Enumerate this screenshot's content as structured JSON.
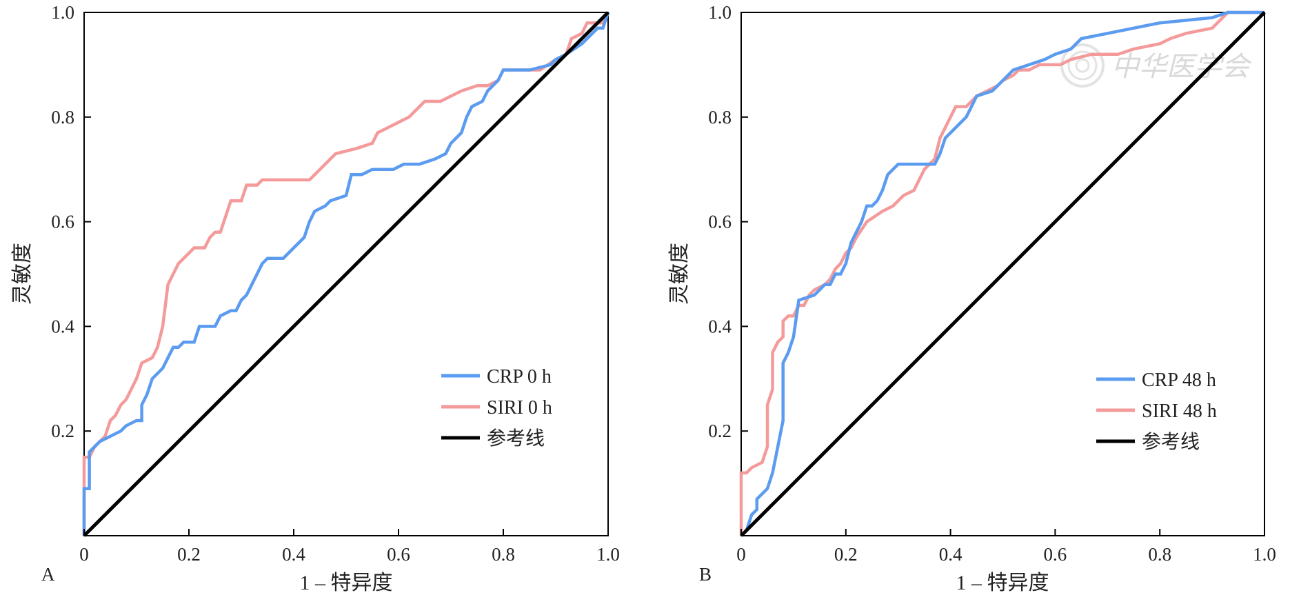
{
  "chart_data": [
    {
      "panel": "A",
      "type": "line",
      "xlabel": "1 – 特异度",
      "ylabel": "灵敏度",
      "xlim": [
        0,
        1.0
      ],
      "ylim": [
        0,
        1.0
      ],
      "x_ticks": [
        "0",
        "0.2",
        "0.4",
        "0.6",
        "0.8",
        "1.0"
      ],
      "y_ticks": [
        "0.2",
        "0.4",
        "0.6",
        "0.8",
        "1.0"
      ],
      "grid": false,
      "legend_position": "bottom-right",
      "series": [
        {
          "name": "CRP 0 h",
          "color": "#5b9bf0",
          "points": [
            [
              0,
              0
            ],
            [
              0,
              0.09
            ],
            [
              0.01,
              0.09
            ],
            [
              0.01,
              0.16
            ],
            [
              0.02,
              0.17
            ],
            [
              0.03,
              0.18
            ],
            [
              0.05,
              0.19
            ],
            [
              0.07,
              0.2
            ],
            [
              0.08,
              0.21
            ],
            [
              0.1,
              0.22
            ],
            [
              0.11,
              0.22
            ],
            [
              0.11,
              0.25
            ],
            [
              0.12,
              0.27
            ],
            [
              0.13,
              0.3
            ],
            [
              0.14,
              0.31
            ],
            [
              0.15,
              0.32
            ],
            [
              0.16,
              0.34
            ],
            [
              0.17,
              0.36
            ],
            [
              0.18,
              0.36
            ],
            [
              0.19,
              0.37
            ],
            [
              0.21,
              0.37
            ],
            [
              0.22,
              0.4
            ],
            [
              0.25,
              0.4
            ],
            [
              0.26,
              0.42
            ],
            [
              0.28,
              0.43
            ],
            [
              0.29,
              0.43
            ],
            [
              0.3,
              0.45
            ],
            [
              0.31,
              0.46
            ],
            [
              0.32,
              0.48
            ],
            [
              0.33,
              0.5
            ],
            [
              0.34,
              0.52
            ],
            [
              0.35,
              0.53
            ],
            [
              0.38,
              0.53
            ],
            [
              0.39,
              0.54
            ],
            [
              0.4,
              0.55
            ],
            [
              0.42,
              0.57
            ],
            [
              0.43,
              0.6
            ],
            [
              0.44,
              0.62
            ],
            [
              0.46,
              0.63
            ],
            [
              0.47,
              0.64
            ],
            [
              0.5,
              0.65
            ],
            [
              0.51,
              0.69
            ],
            [
              0.53,
              0.69
            ],
            [
              0.55,
              0.7
            ],
            [
              0.59,
              0.7
            ],
            [
              0.61,
              0.71
            ],
            [
              0.64,
              0.71
            ],
            [
              0.67,
              0.72
            ],
            [
              0.69,
              0.73
            ],
            [
              0.7,
              0.75
            ],
            [
              0.72,
              0.77
            ],
            [
              0.73,
              0.8
            ],
            [
              0.74,
              0.82
            ],
            [
              0.76,
              0.83
            ],
            [
              0.77,
              0.85
            ],
            [
              0.79,
              0.87
            ],
            [
              0.8,
              0.89
            ],
            [
              0.85,
              0.89
            ],
            [
              0.89,
              0.9
            ],
            [
              0.9,
              0.91
            ],
            [
              0.92,
              0.92
            ],
            [
              0.95,
              0.94
            ],
            [
              0.97,
              0.96
            ],
            [
              0.98,
              0.97
            ],
            [
              0.99,
              0.97
            ],
            [
              1.0,
              1.0
            ]
          ]
        },
        {
          "name": "SIRI 0 h",
          "color": "#f49a9a",
          "points": [
            [
              0,
              0
            ],
            [
              0,
              0.15
            ],
            [
              0.01,
              0.15
            ],
            [
              0.02,
              0.17
            ],
            [
              0.03,
              0.18
            ],
            [
              0.04,
              0.19
            ],
            [
              0.05,
              0.22
            ],
            [
              0.06,
              0.23
            ],
            [
              0.07,
              0.25
            ],
            [
              0.08,
              0.26
            ],
            [
              0.09,
              0.28
            ],
            [
              0.1,
              0.3
            ],
            [
              0.11,
              0.33
            ],
            [
              0.13,
              0.34
            ],
            [
              0.14,
              0.36
            ],
            [
              0.15,
              0.4
            ],
            [
              0.16,
              0.48
            ],
            [
              0.17,
              0.5
            ],
            [
              0.18,
              0.52
            ],
            [
              0.19,
              0.53
            ],
            [
              0.2,
              0.54
            ],
            [
              0.21,
              0.55
            ],
            [
              0.23,
              0.55
            ],
            [
              0.24,
              0.57
            ],
            [
              0.25,
              0.58
            ],
            [
              0.26,
              0.58
            ],
            [
              0.27,
              0.61
            ],
            [
              0.28,
              0.64
            ],
            [
              0.3,
              0.64
            ],
            [
              0.31,
              0.67
            ],
            [
              0.33,
              0.67
            ],
            [
              0.34,
              0.68
            ],
            [
              0.36,
              0.68
            ],
            [
              0.43,
              0.68
            ],
            [
              0.45,
              0.7
            ],
            [
              0.47,
              0.72
            ],
            [
              0.48,
              0.73
            ],
            [
              0.52,
              0.74
            ],
            [
              0.55,
              0.75
            ],
            [
              0.56,
              0.77
            ],
            [
              0.58,
              0.78
            ],
            [
              0.6,
              0.79
            ],
            [
              0.62,
              0.8
            ],
            [
              0.64,
              0.82
            ],
            [
              0.65,
              0.83
            ],
            [
              0.68,
              0.83
            ],
            [
              0.7,
              0.84
            ],
            [
              0.72,
              0.85
            ],
            [
              0.75,
              0.86
            ],
            [
              0.77,
              0.86
            ],
            [
              0.79,
              0.87
            ],
            [
              0.8,
              0.89
            ],
            [
              0.83,
              0.89
            ],
            [
              0.87,
              0.89
            ],
            [
              0.9,
              0.91
            ],
            [
              0.92,
              0.92
            ],
            [
              0.93,
              0.95
            ],
            [
              0.95,
              0.96
            ],
            [
              0.96,
              0.98
            ],
            [
              0.99,
              0.98
            ],
            [
              1.0,
              1.0
            ]
          ]
        },
        {
          "name": "参考线",
          "color": "#000000",
          "points": [
            [
              0,
              0
            ],
            [
              1,
              1
            ]
          ]
        }
      ]
    },
    {
      "panel": "B",
      "type": "line",
      "xlabel": "1 – 特异度",
      "ylabel": "灵敏度",
      "xlim": [
        0,
        1.0
      ],
      "ylim": [
        0,
        1.0
      ],
      "x_ticks": [
        "0",
        "0.2",
        "0.4",
        "0.6",
        "0.8",
        "1.0"
      ],
      "y_ticks": [
        "0.2",
        "0.4",
        "0.6",
        "0.8",
        "1.0"
      ],
      "grid": false,
      "legend_position": "bottom-right",
      "series": [
        {
          "name": "CRP 48 h",
          "color": "#5b9bf0",
          "points": [
            [
              0,
              0
            ],
            [
              0.01,
              0.01
            ],
            [
              0.02,
              0.04
            ],
            [
              0.03,
              0.05
            ],
            [
              0.03,
              0.07
            ],
            [
              0.04,
              0.08
            ],
            [
              0.05,
              0.09
            ],
            [
              0.06,
              0.12
            ],
            [
              0.07,
              0.17
            ],
            [
              0.08,
              0.22
            ],
            [
              0.08,
              0.33
            ],
            [
              0.09,
              0.35
            ],
            [
              0.1,
              0.38
            ],
            [
              0.11,
              0.45
            ],
            [
              0.14,
              0.46
            ],
            [
              0.15,
              0.47
            ],
            [
              0.16,
              0.48
            ],
            [
              0.17,
              0.48
            ],
            [
              0.18,
              0.5
            ],
            [
              0.19,
              0.5
            ],
            [
              0.2,
              0.52
            ],
            [
              0.21,
              0.56
            ],
            [
              0.22,
              0.58
            ],
            [
              0.23,
              0.6
            ],
            [
              0.24,
              0.63
            ],
            [
              0.25,
              0.63
            ],
            [
              0.26,
              0.64
            ],
            [
              0.27,
              0.66
            ],
            [
              0.28,
              0.69
            ],
            [
              0.3,
              0.71
            ],
            [
              0.37,
              0.71
            ],
            [
              0.38,
              0.73
            ],
            [
              0.39,
              0.76
            ],
            [
              0.4,
              0.77
            ],
            [
              0.42,
              0.79
            ],
            [
              0.43,
              0.8
            ],
            [
              0.44,
              0.82
            ],
            [
              0.45,
              0.84
            ],
            [
              0.48,
              0.85
            ],
            [
              0.5,
              0.87
            ],
            [
              0.52,
              0.89
            ],
            [
              0.55,
              0.9
            ],
            [
              0.58,
              0.91
            ],
            [
              0.6,
              0.92
            ],
            [
              0.63,
              0.93
            ],
            [
              0.65,
              0.95
            ],
            [
              0.7,
              0.96
            ],
            [
              0.75,
              0.97
            ],
            [
              0.8,
              0.98
            ],
            [
              0.9,
              0.99
            ],
            [
              0.93,
              1.0
            ],
            [
              1.0,
              1.0
            ]
          ]
        },
        {
          "name": "SIRI 48 h",
          "color": "#f49a9a",
          "points": [
            [
              0,
              0
            ],
            [
              0,
              0.12
            ],
            [
              0.01,
              0.12
            ],
            [
              0.02,
              0.13
            ],
            [
              0.04,
              0.14
            ],
            [
              0.05,
              0.17
            ],
            [
              0.05,
              0.25
            ],
            [
              0.06,
              0.28
            ],
            [
              0.06,
              0.35
            ],
            [
              0.07,
              0.37
            ],
            [
              0.08,
              0.38
            ],
            [
              0.08,
              0.41
            ],
            [
              0.09,
              0.42
            ],
            [
              0.1,
              0.42
            ],
            [
              0.11,
              0.44
            ],
            [
              0.12,
              0.44
            ],
            [
              0.13,
              0.46
            ],
            [
              0.14,
              0.47
            ],
            [
              0.16,
              0.48
            ],
            [
              0.17,
              0.49
            ],
            [
              0.18,
              0.51
            ],
            [
              0.19,
              0.52
            ],
            [
              0.2,
              0.54
            ],
            [
              0.21,
              0.55
            ],
            [
              0.22,
              0.57
            ],
            [
              0.24,
              0.6
            ],
            [
              0.27,
              0.62
            ],
            [
              0.29,
              0.63
            ],
            [
              0.31,
              0.65
            ],
            [
              0.33,
              0.66
            ],
            [
              0.34,
              0.68
            ],
            [
              0.35,
              0.7
            ],
            [
              0.37,
              0.72
            ],
            [
              0.38,
              0.76
            ],
            [
              0.39,
              0.78
            ],
            [
              0.4,
              0.8
            ],
            [
              0.41,
              0.82
            ],
            [
              0.43,
              0.82
            ],
            [
              0.45,
              0.84
            ],
            [
              0.47,
              0.85
            ],
            [
              0.49,
              0.86
            ],
            [
              0.5,
              0.87
            ],
            [
              0.52,
              0.88
            ],
            [
              0.53,
              0.89
            ],
            [
              0.55,
              0.89
            ],
            [
              0.57,
              0.9
            ],
            [
              0.61,
              0.9
            ],
            [
              0.63,
              0.91
            ],
            [
              0.67,
              0.92
            ],
            [
              0.72,
              0.92
            ],
            [
              0.75,
              0.93
            ],
            [
              0.8,
              0.94
            ],
            [
              0.82,
              0.95
            ],
            [
              0.85,
              0.96
            ],
            [
              0.9,
              0.97
            ],
            [
              0.93,
              1.0
            ],
            [
              1.0,
              1.0
            ]
          ]
        },
        {
          "name": "参考线",
          "color": "#000000",
          "points": [
            [
              0,
              0
            ],
            [
              1,
              1
            ]
          ]
        }
      ]
    }
  ],
  "watermark": {
    "text": "中华医学会"
  }
}
